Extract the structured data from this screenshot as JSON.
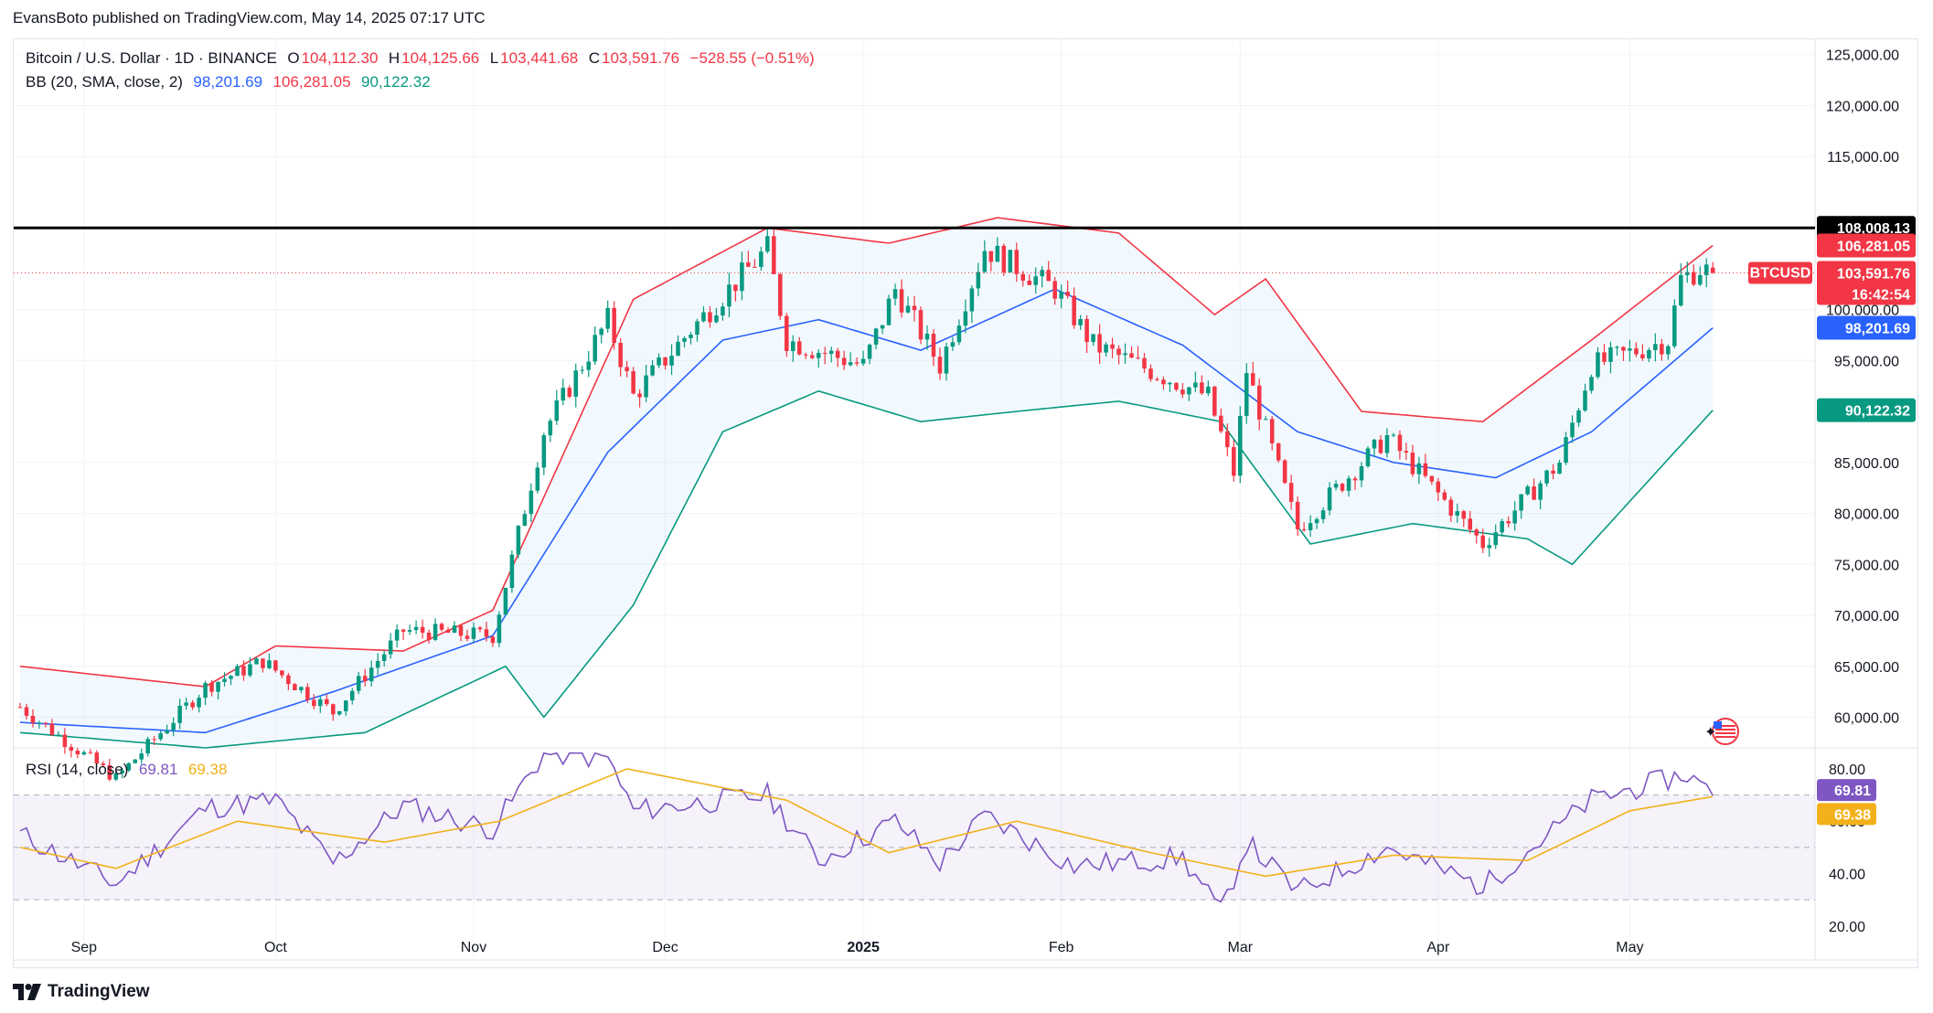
{
  "header": {
    "published": "EvansBoto published on TradingView.com, May 14, 2025 07:17 UTC"
  },
  "symbol_legend": {
    "title": "Bitcoin / U.S. Dollar · 1D · BINANCE",
    "open_label": "O",
    "open": "104,112.30",
    "high_label": "H",
    "high": "104,125.66",
    "low_label": "L",
    "low": "103,441.68",
    "close_label": "C",
    "close": "103,591.76",
    "change": "−528.55 (−0.51%)"
  },
  "bb_legend": {
    "label": "BB (20, SMA, close, 2)",
    "basis": "98,201.69",
    "upper": "106,281.05",
    "lower": "90,122.32"
  },
  "rsi_legend": {
    "label": "RSI (14, close)",
    "rsi": "69.81",
    "ma": "69.38"
  },
  "price_tags": {
    "resistance": "108,008.13",
    "upper": "106,281.05",
    "symbol": "BTCUSD",
    "last": "103,591.76",
    "countdown": "16:42:54",
    "basis": "98,201.69",
    "lower": "90,122.32",
    "rsi": "69.81",
    "rsi_ma": "69.38"
  },
  "colors": {
    "up": "#089981",
    "down": "#f23645",
    "basis": "#2962ff",
    "upper": "#f23645",
    "lower": "#089981",
    "rsi": "#7e57c2",
    "rsi_ma": "#f2b11b",
    "resistance": "#000000"
  },
  "footer": {
    "brand": "TradingView"
  },
  "chart_data": {
    "type": "candlestick",
    "title": "Bitcoin / U.S. Dollar · 1D · BINANCE",
    "price_axis": {
      "ticks": [
        60000,
        65000,
        70000,
        75000,
        80000,
        85000,
        95000,
        100000,
        115000,
        120000,
        125000
      ],
      "tick_labels": [
        "60,000.00",
        "65,000.00",
        "70,000.00",
        "75,000.00",
        "80,000.00",
        "85,000.00",
        "95,000.00",
        "100,000.00",
        "115,000.00",
        "120,000.00",
        "125,000.00"
      ],
      "range": [
        57000,
        126500
      ]
    },
    "time_axis": {
      "labels": [
        "Sep",
        "Oct",
        "Nov",
        "Dec",
        "2025",
        "Feb",
        "Mar",
        "Apr",
        "May"
      ]
    },
    "resistance_level": 108008.13,
    "close_series_keypoints": [
      [
        "2024-08-22",
        61000
      ],
      [
        "2024-09-06",
        54000
      ],
      [
        "2024-09-20",
        63000
      ],
      [
        "2024-09-29",
        65500
      ],
      [
        "2024-10-10",
        60500
      ],
      [
        "2024-10-21",
        68500
      ],
      [
        "2024-11-04",
        68000
      ],
      [
        "2024-11-12",
        88000
      ],
      [
        "2024-11-22",
        99000
      ],
      [
        "2024-11-26",
        91500
      ],
      [
        "2024-12-05",
        98000
      ],
      [
        "2024-12-17",
        106000
      ],
      [
        "2024-12-20",
        97000
      ],
      [
        "2025-01-01",
        94500
      ],
      [
        "2025-01-06",
        102000
      ],
      [
        "2025-01-13",
        94500
      ],
      [
        "2025-01-20",
        106000
      ],
      [
        "2025-01-31",
        102000
      ],
      [
        "2025-02-06",
        96500
      ],
      [
        "2025-02-24",
        91500
      ],
      [
        "2025-02-28",
        84000
      ],
      [
        "2025-03-02",
        94000
      ],
      [
        "2025-03-10",
        78500
      ],
      [
        "2025-03-24",
        87500
      ],
      [
        "2025-04-08",
        77000
      ],
      [
        "2025-04-20",
        85000
      ],
      [
        "2025-04-25",
        94500
      ],
      [
        "2025-05-07",
        97000
      ],
      [
        "2025-05-09",
        103000
      ],
      [
        "2025-05-12",
        104000
      ],
      [
        "2025-05-14",
        103591.76
      ]
    ],
    "bollinger": {
      "basis_keypoints": [
        [
          "2024-08-22",
          59500
        ],
        [
          "2024-09-20",
          58500
        ],
        [
          "2024-10-10",
          62500
        ],
        [
          "2024-11-04",
          68000
        ],
        [
          "2024-11-22",
          86000
        ],
        [
          "2024-12-10",
          97000
        ],
        [
          "2024-12-25",
          99000
        ],
        [
          "2025-01-10",
          96000
        ],
        [
          "2025-01-31",
          102000
        ],
        [
          "2025-02-20",
          96500
        ],
        [
          "2025-03-10",
          88000
        ],
        [
          "2025-03-25",
          85000
        ],
        [
          "2025-04-10",
          83500
        ],
        [
          "2025-04-25",
          88000
        ],
        [
          "2025-05-14",
          98201.69
        ]
      ],
      "upper_keypoints": [
        [
          "2024-08-22",
          65000
        ],
        [
          "2024-09-20",
          63000
        ],
        [
          "2024-10-01",
          67000
        ],
        [
          "2024-10-21",
          66500
        ],
        [
          "2024-11-04",
          70500
        ],
        [
          "2024-11-26",
          101000
        ],
        [
          "2024-12-17",
          108000
        ],
        [
          "2025-01-05",
          106500
        ],
        [
          "2025-01-22",
          109000
        ],
        [
          "2025-02-10",
          107500
        ],
        [
          "2025-02-25",
          99500
        ],
        [
          "2025-03-05",
          103000
        ],
        [
          "2025-03-20",
          90000
        ],
        [
          "2025-04-08",
          89000
        ],
        [
          "2025-04-25",
          97000
        ],
        [
          "2025-05-14",
          106281.05
        ]
      ],
      "lower_keypoints": [
        [
          "2024-08-22",
          58500
        ],
        [
          "2024-09-20",
          57000
        ],
        [
          "2024-10-15",
          58500
        ],
        [
          "2024-11-06",
          65000
        ],
        [
          "2024-11-12",
          60000
        ],
        [
          "2024-11-26",
          71000
        ],
        [
          "2024-12-10",
          88000
        ],
        [
          "2024-12-25",
          92000
        ],
        [
          "2025-01-10",
          89000
        ],
        [
          "2025-01-25",
          90000
        ],
        [
          "2025-02-10",
          91000
        ],
        [
          "2025-02-26",
          89000
        ],
        [
          "2025-03-12",
          77000
        ],
        [
          "2025-03-28",
          79000
        ],
        [
          "2025-04-15",
          77500
        ],
        [
          "2025-04-22",
          75000
        ],
        [
          "2025-05-14",
          90122.32
        ]
      ]
    },
    "rsi": {
      "axis_ticks": [
        20,
        40,
        60,
        80
      ],
      "tick_labels": [
        "20.00",
        "40.00",
        "60.00",
        "80.00"
      ],
      "bands": [
        30,
        50,
        70
      ],
      "rsi_keypoints": [
        [
          "2024-08-22",
          55
        ],
        [
          "2024-09-06",
          36
        ],
        [
          "2024-09-20",
          65
        ],
        [
          "2024-10-01",
          68
        ],
        [
          "2024-10-10",
          44
        ],
        [
          "2024-10-21",
          66
        ],
        [
          "2024-11-04",
          57
        ],
        [
          "2024-11-12",
          86
        ],
        [
          "2024-11-22",
          84
        ],
        [
          "2024-11-26",
          64
        ],
        [
          "2024-12-17",
          70
        ],
        [
          "2024-12-25",
          45
        ],
        [
          "2025-01-06",
          60
        ],
        [
          "2025-01-13",
          44
        ],
        [
          "2025-01-20",
          62
        ],
        [
          "2025-02-03",
          43
        ],
        [
          "2025-02-20",
          46
        ],
        [
          "2025-02-26",
          25
        ],
        [
          "2025-03-02",
          52
        ],
        [
          "2025-03-10",
          33
        ],
        [
          "2025-03-24",
          50
        ],
        [
          "2025-04-08",
          35
        ],
        [
          "2025-04-25",
          68
        ],
        [
          "2025-05-10",
          78
        ],
        [
          "2025-05-14",
          69.81
        ]
      ],
      "ma_keypoints": [
        [
          "2024-08-22",
          50
        ],
        [
          "2024-09-06",
          42
        ],
        [
          "2024-09-25",
          60
        ],
        [
          "2024-10-18",
          52
        ],
        [
          "2024-11-05",
          60
        ],
        [
          "2024-11-25",
          80
        ],
        [
          "2024-12-20",
          68
        ],
        [
          "2025-01-05",
          48
        ],
        [
          "2025-01-25",
          60
        ],
        [
          "2025-02-15",
          48
        ],
        [
          "2025-03-05",
          39
        ],
        [
          "2025-03-25",
          47
        ],
        [
          "2025-04-15",
          45
        ],
        [
          "2025-05-01",
          64
        ],
        [
          "2025-05-14",
          69.38
        ]
      ]
    }
  }
}
